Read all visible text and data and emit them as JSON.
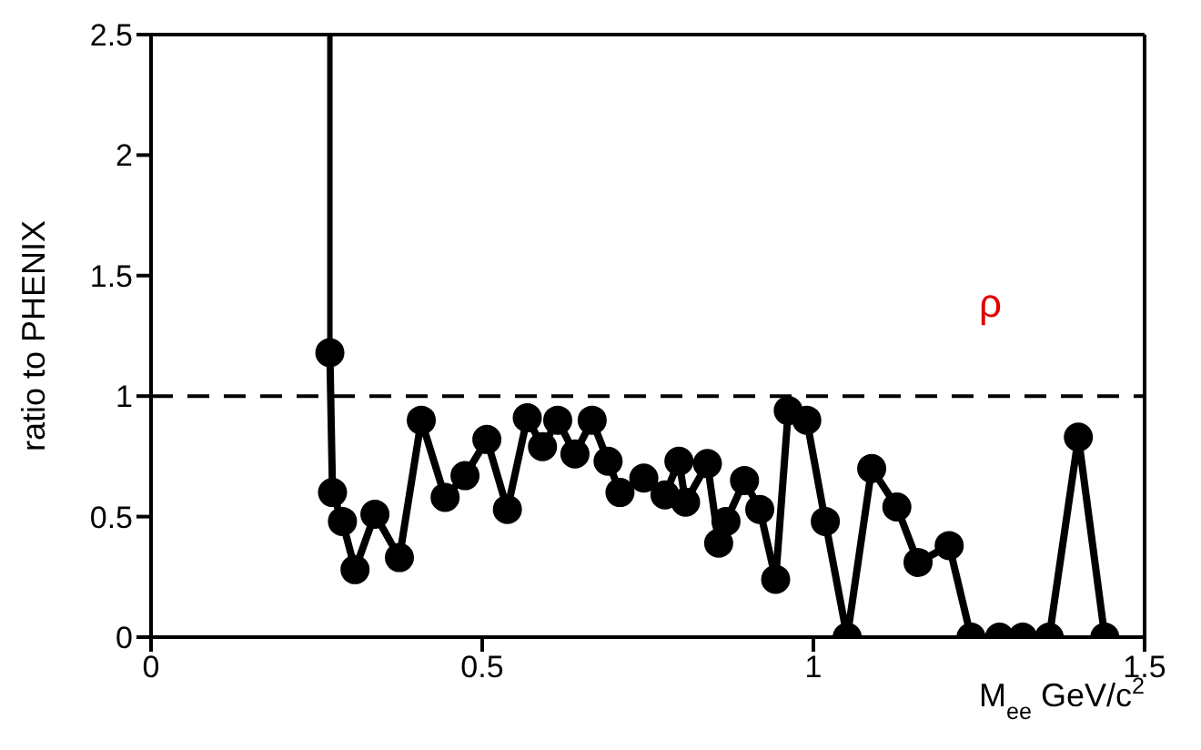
{
  "chart_data": {
    "type": "line",
    "xlabel": "M$_{ee}$ GeV/c$^{2}$",
    "ylabel": "ratio to PHENIX",
    "annotations": [
      "ρ"
    ],
    "xlim": [
      0,
      1.5
    ],
    "xticks": [
      0,
      0.5,
      1,
      1.5
    ],
    "ylim": [
      0,
      2.5
    ],
    "yticks": [
      0,
      0.5,
      1,
      1.5,
      2,
      2.5
    ],
    "marker": "circle",
    "line_style": "solid",
    "ref_lines": [
      {
        "axis": "y",
        "value": 1,
        "color": "#000000",
        "line_style": "dashed"
      }
    ],
    "series": [
      {
        "color": "#000000",
        "x": [
          0.27,
          0.274,
          0.289,
          0.308,
          0.338,
          0.375,
          0.408,
          0.444,
          0.474,
          0.507,
          0.538,
          0.568,
          0.591,
          0.614,
          0.64,
          0.666,
          0.69,
          0.708,
          0.744,
          0.776,
          0.797,
          0.807,
          0.84,
          0.857,
          0.868,
          0.896,
          0.919,
          0.943,
          0.962,
          0.99,
          1.018,
          1.051,
          1.088,
          1.126,
          1.158,
          1.205,
          1.238,
          1.281,
          1.316,
          1.356,
          1.4,
          1.44
        ],
        "values": [
          1.18,
          0.6,
          0.48,
          0.28,
          0.51,
          0.33,
          0.9,
          0.58,
          0.67,
          0.82,
          0.53,
          0.91,
          0.79,
          0.9,
          0.76,
          0.9,
          0.73,
          0.6,
          0.66,
          0.59,
          0.73,
          0.56,
          0.72,
          0.39,
          0.48,
          0.65,
          0.53,
          0.24,
          0.94,
          0.9,
          0.48,
          0,
          0.7,
          0.54,
          0.31,
          0.38,
          0,
          0,
          0,
          0,
          0.83,
          0
        ],
        "errors": [
          [
            1.18,
            2.5
          ],
          null,
          null,
          null,
          null,
          null,
          null,
          null,
          null,
          null,
          null,
          null,
          null,
          null,
          null,
          null,
          null,
          null,
          null,
          null,
          null,
          null,
          null,
          null,
          null,
          null,
          null,
          null,
          null,
          null,
          null,
          null,
          null,
          null,
          null,
          null,
          null,
          null,
          null,
          null,
          null,
          null
        ]
      }
    ]
  }
}
